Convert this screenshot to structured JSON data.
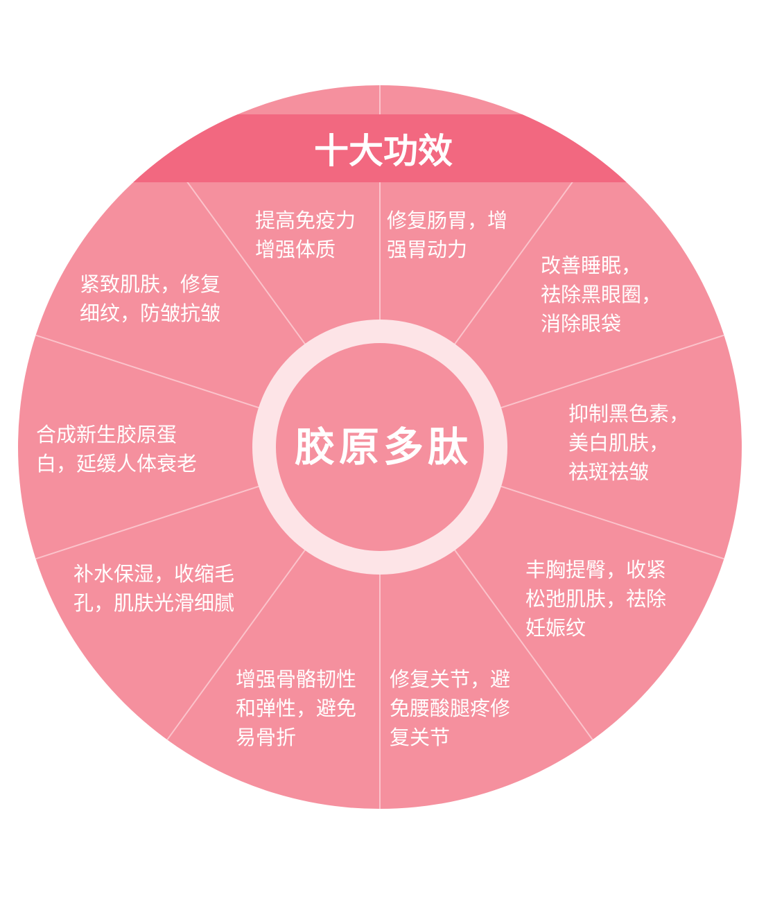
{
  "colors": {
    "wheel_fill": "#f5909e",
    "banner_fill": "#f26880",
    "divider": "#fbc3cb",
    "ring": "#fde4e7",
    "text": "#ffffff"
  },
  "banner": {
    "title": "十大功效"
  },
  "center": {
    "title": "胶原多肽"
  },
  "benefits": [
    {
      "lines": [
        "提高免疫力",
        "增强体质"
      ]
    },
    {
      "lines": [
        "修复肠胃，增",
        "强胃动力"
      ]
    },
    {
      "lines": [
        "改善睡眠，",
        "祛除黑眼圈，",
        "消除眼袋"
      ]
    },
    {
      "lines": [
        "抑制黑色素，",
        "美白肌肤，",
        "祛斑祛皱"
      ]
    },
    {
      "lines": [
        "丰胸提臀，收紧",
        "松弛肌肤，祛除",
        "妊娠纹"
      ]
    },
    {
      "lines": [
        "修复关节，避",
        "免腰酸腿疼修",
        "复关节"
      ]
    },
    {
      "lines": [
        "增强骨骼韧性",
        "和弹性，避免",
        "易骨折"
      ]
    },
    {
      "lines": [
        "补水保湿，收缩毛",
        "孔，肌肤光滑细腻"
      ]
    },
    {
      "lines": [
        "合成新生胶原蛋",
        "白，延缓人体衰老"
      ]
    },
    {
      "lines": [
        "紧致肌肤，修复",
        "细纹，防皱抗皱"
      ]
    }
  ]
}
